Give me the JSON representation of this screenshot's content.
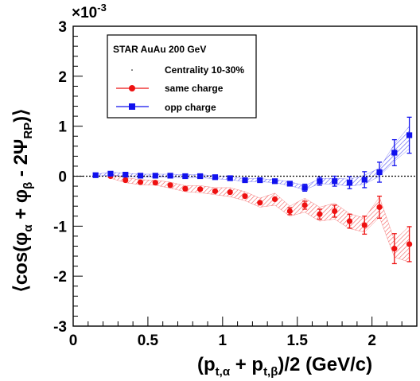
{
  "chart_data": {
    "type": "scatter",
    "xlabel": "(p",
    "xlabel_parts": {
      "sub1": "t,α",
      "plus": " + p",
      "sub2": "t,β",
      "tail": ")/2  (GeV/c)"
    },
    "ylabel_parts": {
      "pre": "⟨cos(φ",
      "sub1": "α",
      "mid": " + φ",
      "sub2": "β",
      "post": " - 2Ψ",
      "sub3": "RP",
      "end": ")⟩"
    },
    "y_exponent": "×10",
    "y_exponent_power": "-3",
    "xlim": [
      0,
      2.3
    ],
    "ylim": [
      -3,
      3
    ],
    "x_ticks": [
      0,
      0.5,
      1,
      1.5,
      2
    ],
    "x_tick_labels": [
      "0",
      "0.5",
      "1",
      "1.5",
      "2"
    ],
    "y_ticks": [
      -3,
      -2,
      -1,
      0,
      1,
      2,
      3
    ],
    "y_tick_labels": [
      "-3",
      "-2",
      "-1",
      "0",
      "1",
      "2",
      "3"
    ],
    "legend": {
      "title": "STAR  AuAu 200 GeV",
      "entries": [
        "Centrality 10-30%",
        "same charge",
        "opp charge"
      ],
      "placement": "top-left"
    },
    "series": [
      {
        "name": "same charge",
        "color": "#ee1111",
        "marker": "circle",
        "x": [
          0.25,
          0.35,
          0.45,
          0.55,
          0.65,
          0.75,
          0.85,
          0.95,
          1.05,
          1.15,
          1.25,
          1.35,
          1.45,
          1.55,
          1.65,
          1.75,
          1.85,
          1.95,
          2.05,
          2.15,
          2.25
        ],
        "y": [
          0.0,
          -0.08,
          -0.12,
          -0.13,
          -0.18,
          -0.25,
          -0.26,
          -0.3,
          -0.32,
          -0.4,
          -0.53,
          -0.46,
          -0.7,
          -0.58,
          -0.76,
          -0.7,
          -0.9,
          -0.98,
          -0.62,
          -1.45,
          -1.36
        ],
        "err": [
          0.03,
          0.03,
          0.03,
          0.03,
          0.03,
          0.03,
          0.03,
          0.03,
          0.04,
          0.04,
          0.05,
          0.05,
          0.07,
          0.08,
          0.1,
          0.12,
          0.14,
          0.18,
          0.22,
          0.3,
          0.35
        ],
        "sys_low": [
          -0.04,
          -0.13,
          -0.17,
          -0.18,
          -0.24,
          -0.31,
          -0.33,
          -0.37,
          -0.41,
          -0.49,
          -0.62,
          -0.58,
          -0.8,
          -0.72,
          -0.9,
          -0.86,
          -1.05,
          -1.12,
          -0.82,
          -1.62,
          -1.72
        ],
        "sys_high": [
          0.04,
          -0.03,
          -0.07,
          -0.08,
          -0.12,
          -0.19,
          -0.19,
          -0.23,
          -0.23,
          -0.31,
          -0.44,
          -0.34,
          -0.6,
          -0.44,
          -0.62,
          -0.54,
          -0.75,
          -0.84,
          -0.42,
          -1.28,
          -1.0
        ]
      },
      {
        "name": "opp charge",
        "color": "#1111ee",
        "marker": "square",
        "x": [
          0.15,
          0.25,
          0.35,
          0.45,
          0.55,
          0.65,
          0.75,
          0.85,
          0.95,
          1.05,
          1.15,
          1.25,
          1.35,
          1.45,
          1.55,
          1.65,
          1.75,
          1.85,
          1.95,
          2.05,
          2.15,
          2.25
        ],
        "y": [
          0.02,
          0.05,
          0.03,
          0.01,
          0.01,
          0.01,
          0.0,
          0.0,
          -0.02,
          -0.04,
          -0.08,
          -0.08,
          -0.1,
          -0.15,
          -0.23,
          -0.1,
          -0.1,
          -0.13,
          -0.07,
          0.08,
          0.47,
          0.82
        ],
        "err": [
          0.03,
          0.03,
          0.03,
          0.03,
          0.03,
          0.03,
          0.03,
          0.03,
          0.03,
          0.04,
          0.04,
          0.05,
          0.05,
          0.06,
          0.07,
          0.08,
          0.1,
          0.12,
          0.16,
          0.2,
          0.26,
          0.36
        ],
        "sys_low": [
          0.0,
          0.02,
          0.0,
          -0.02,
          -0.02,
          -0.02,
          -0.03,
          -0.03,
          -0.05,
          -0.07,
          -0.11,
          -0.11,
          -0.13,
          -0.19,
          -0.27,
          -0.15,
          -0.16,
          -0.2,
          -0.16,
          0.0,
          0.3,
          0.55
        ],
        "sys_high": [
          0.04,
          0.08,
          0.06,
          0.04,
          0.04,
          0.04,
          0.03,
          0.03,
          0.01,
          -0.01,
          -0.05,
          -0.05,
          -0.07,
          -0.11,
          -0.19,
          -0.05,
          -0.04,
          -0.06,
          0.02,
          0.16,
          0.64,
          1.0
        ]
      }
    ]
  }
}
